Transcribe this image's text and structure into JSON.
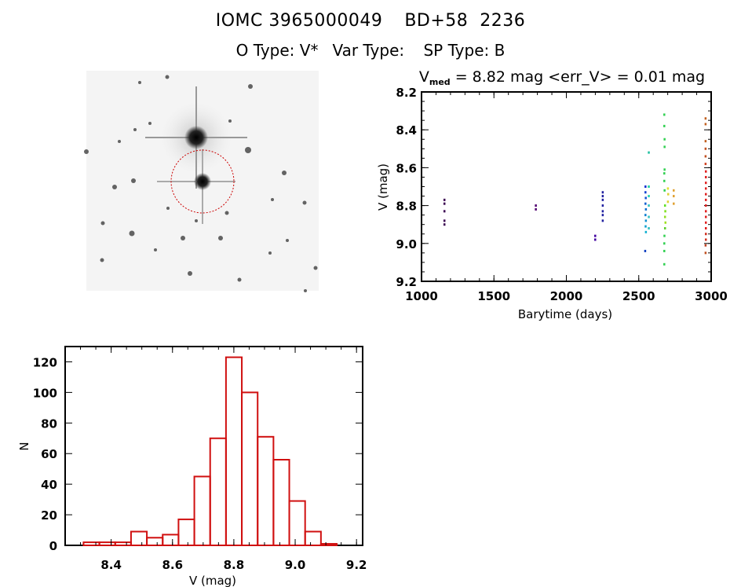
{
  "header": {
    "object_id": "IOMC 3965000049",
    "cat_name": "BD+58",
    "cat_number": "2236",
    "o_type": "O Type: V*",
    "var_type": "Var Type:",
    "sp_type": "SP Type: B"
  },
  "image_panel": {
    "description_icon": "star-field-image"
  },
  "colors": {
    "hist_bar": "#d01010",
    "circle": "#cc0000",
    "axis": "#000000"
  },
  "chart_data": [
    {
      "type": "scatter",
      "title_prefix": "V",
      "title_sub": "med",
      "title_rest": " = 8.82 mag <err_V> = 0.01 mag",
      "xlabel": "Barytime (days)",
      "ylabel": "V (mag)",
      "xlim": [
        1000,
        3000
      ],
      "ylim": [
        9.2,
        8.2
      ],
      "xticks": [
        "1000",
        "1500",
        "2000",
        "2500",
        "3000"
      ],
      "xtick_values": [
        1000,
        1500,
        2000,
        2500,
        3000
      ],
      "yticks": [
        "8.2",
        "8.4",
        "8.6",
        "8.8",
        "9.0",
        "9.2"
      ],
      "ytick_values": [
        8.2,
        8.4,
        8.6,
        8.8,
        9.0,
        9.2
      ],
      "points": [
        {
          "t": 1157,
          "v": 8.77,
          "c": "#3a0050"
        },
        {
          "t": 1157,
          "v": 8.79,
          "c": "#3a0050"
        },
        {
          "t": 1157,
          "v": 8.83,
          "c": "#3a0050"
        },
        {
          "t": 1157,
          "v": 8.88,
          "c": "#3a0050"
        },
        {
          "t": 1157,
          "v": 8.9,
          "c": "#3a0050"
        },
        {
          "t": 1788,
          "v": 8.8,
          "c": "#500070"
        },
        {
          "t": 1788,
          "v": 8.82,
          "c": "#500070"
        },
        {
          "t": 2198,
          "v": 8.96,
          "c": "#4000a0"
        },
        {
          "t": 2198,
          "v": 8.98,
          "c": "#4000a0"
        },
        {
          "t": 2250,
          "v": 8.73,
          "c": "#2020a0"
        },
        {
          "t": 2250,
          "v": 8.75,
          "c": "#2020a0"
        },
        {
          "t": 2250,
          "v": 8.77,
          "c": "#2020a0"
        },
        {
          "t": 2250,
          "v": 8.8,
          "c": "#2020a0"
        },
        {
          "t": 2250,
          "v": 8.83,
          "c": "#2020a0"
        },
        {
          "t": 2250,
          "v": 8.85,
          "c": "#2020a0"
        },
        {
          "t": 2250,
          "v": 8.88,
          "c": "#2020a0"
        },
        {
          "t": 2545,
          "v": 8.7,
          "c": "#1030d0"
        },
        {
          "t": 2545,
          "v": 8.73,
          "c": "#1040d0"
        },
        {
          "t": 2547,
          "v": 8.76,
          "c": "#1050d0"
        },
        {
          "t": 2545,
          "v": 8.79,
          "c": "#1060d0"
        },
        {
          "t": 2548,
          "v": 8.82,
          "c": "#1070d0"
        },
        {
          "t": 2545,
          "v": 8.85,
          "c": "#1080d0"
        },
        {
          "t": 2548,
          "v": 8.88,
          "c": "#1090d0"
        },
        {
          "t": 2546,
          "v": 8.91,
          "c": "#10a0d0"
        },
        {
          "t": 2548,
          "v": 8.94,
          "c": "#10b0d0"
        },
        {
          "t": 2543,
          "v": 9.04,
          "c": "#1040c0"
        },
        {
          "t": 2568,
          "v": 8.52,
          "c": "#20c0a0"
        },
        {
          "t": 2568,
          "v": 8.7,
          "c": "#20d0a0"
        },
        {
          "t": 2568,
          "v": 8.75,
          "c": "#20d0b0"
        },
        {
          "t": 2568,
          "v": 8.8,
          "c": "#30c0c0"
        },
        {
          "t": 2568,
          "v": 8.86,
          "c": "#30c0c0"
        },
        {
          "t": 2568,
          "v": 8.92,
          "c": "#30c0c0"
        },
        {
          "t": 2675,
          "v": 8.32,
          "c": "#30d050"
        },
        {
          "t": 2675,
          "v": 8.38,
          "c": "#30d050"
        },
        {
          "t": 2677,
          "v": 8.45,
          "c": "#30d050"
        },
        {
          "t": 2677,
          "v": 8.49,
          "c": "#30d050"
        },
        {
          "t": 2677,
          "v": 8.61,
          "c": "#30d050"
        },
        {
          "t": 2675,
          "v": 8.63,
          "c": "#30d050"
        },
        {
          "t": 2675,
          "v": 8.67,
          "c": "#30d050"
        },
        {
          "t": 2677,
          "v": 8.72,
          "c": "#30d050"
        },
        {
          "t": 2680,
          "v": 8.8,
          "c": "#60e020"
        },
        {
          "t": 2682,
          "v": 8.83,
          "c": "#80e020"
        },
        {
          "t": 2680,
          "v": 8.86,
          "c": "#90e020"
        },
        {
          "t": 2683,
          "v": 8.89,
          "c": "#a0e020"
        },
        {
          "t": 2680,
          "v": 8.92,
          "c": "#60d030"
        },
        {
          "t": 2676,
          "v": 8.96,
          "c": "#30d050"
        },
        {
          "t": 2675,
          "v": 9.0,
          "c": "#30d050"
        },
        {
          "t": 2675,
          "v": 9.04,
          "c": "#30d050"
        },
        {
          "t": 2675,
          "v": 9.11,
          "c": "#30d050"
        },
        {
          "t": 2700,
          "v": 8.71,
          "c": "#e0e030"
        },
        {
          "t": 2702,
          "v": 8.74,
          "c": "#e0d030"
        },
        {
          "t": 2700,
          "v": 8.78,
          "c": "#e0d030"
        },
        {
          "t": 2740,
          "v": 8.72,
          "c": "#e0a030"
        },
        {
          "t": 2740,
          "v": 8.75,
          "c": "#e0a030"
        },
        {
          "t": 2740,
          "v": 8.79,
          "c": "#e0a030"
        },
        {
          "t": 2960,
          "v": 8.34,
          "c": "#c06020"
        },
        {
          "t": 2960,
          "v": 8.37,
          "c": "#c06020"
        },
        {
          "t": 2960,
          "v": 8.46,
          "c": "#c06020"
        },
        {
          "t": 2960,
          "v": 8.5,
          "c": "#c05020"
        },
        {
          "t": 2960,
          "v": 8.54,
          "c": "#c05020"
        },
        {
          "t": 2960,
          "v": 8.58,
          "c": "#d04020"
        },
        {
          "t": 2962,
          "v": 8.62,
          "c": "#e02020"
        },
        {
          "t": 2962,
          "v": 8.65,
          "c": "#e02020"
        },
        {
          "t": 2962,
          "v": 8.68,
          "c": "#e02020"
        },
        {
          "t": 2962,
          "v": 8.71,
          "c": "#e02020"
        },
        {
          "t": 2962,
          "v": 8.74,
          "c": "#e02020"
        },
        {
          "t": 2962,
          "v": 8.77,
          "c": "#e02020"
        },
        {
          "t": 2962,
          "v": 8.8,
          "c": "#e02020"
        },
        {
          "t": 2962,
          "v": 8.83,
          "c": "#e02020"
        },
        {
          "t": 2962,
          "v": 8.86,
          "c": "#e02020"
        },
        {
          "t": 2962,
          "v": 8.89,
          "c": "#e02020"
        },
        {
          "t": 2962,
          "v": 8.92,
          "c": "#e02020"
        },
        {
          "t": 2962,
          "v": 8.95,
          "c": "#d03020"
        },
        {
          "t": 2962,
          "v": 8.98,
          "c": "#d03020"
        },
        {
          "t": 2960,
          "v": 9.01,
          "c": "#c04020"
        },
        {
          "t": 2960,
          "v": 9.05,
          "c": "#c05020"
        }
      ]
    },
    {
      "type": "bar",
      "xlabel": "V (mag)",
      "ylabel": "N",
      "xlim": [
        8.25,
        9.22
      ],
      "ylim": [
        0,
        130
      ],
      "xticks": [
        "8.4",
        "8.6",
        "8.8",
        "9.0",
        "9.2"
      ],
      "xtick_values": [
        8.4,
        8.6,
        8.8,
        9.0,
        9.2
      ],
      "yticks": [
        "0",
        "20",
        "40",
        "60",
        "80",
        "100",
        "120"
      ],
      "ytick_values": [
        0,
        20,
        40,
        60,
        80,
        100,
        120
      ],
      "bin_start": 8.31,
      "bin_width": 0.0516,
      "values": [
        2,
        2,
        2,
        9,
        5,
        7,
        17,
        45,
        70,
        123,
        100,
        71,
        56,
        29,
        9,
        1
      ]
    }
  ]
}
